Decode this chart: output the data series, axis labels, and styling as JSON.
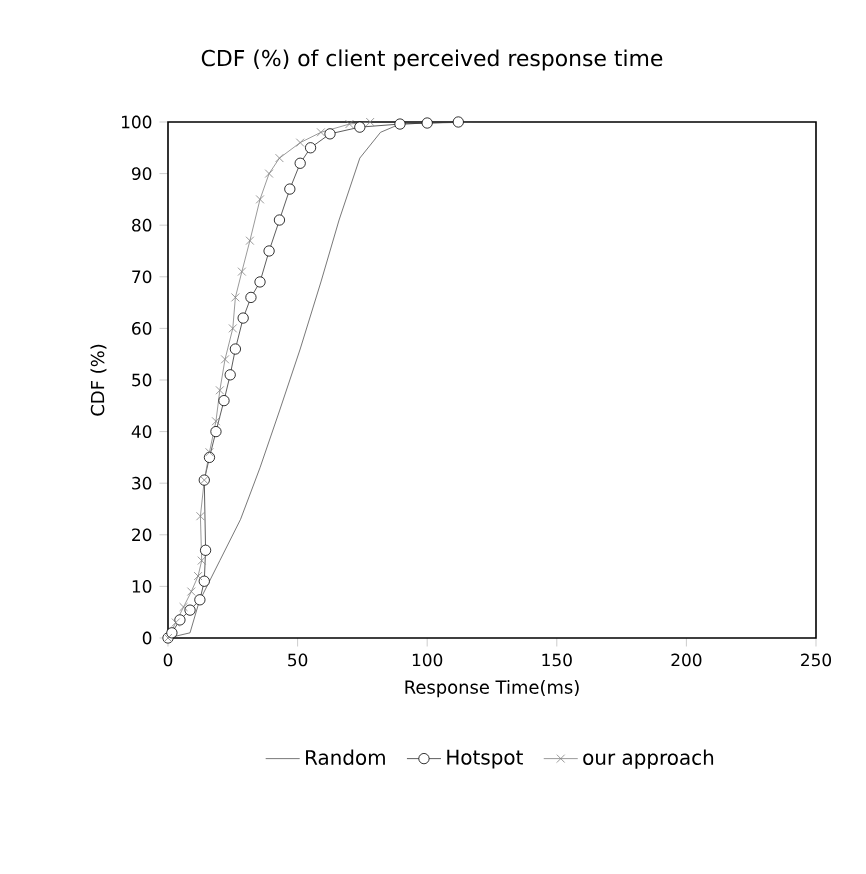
{
  "chart_data": {
    "type": "line",
    "title": "CDF (%) of client perceived response time",
    "xlabel": "Response Time(ms)",
    "ylabel": "CDF (%)",
    "xlim": [
      0,
      250
    ],
    "xticks": [
      0,
      50,
      100,
      150,
      200,
      250
    ],
    "ylim": [
      0,
      100
    ],
    "yticks": [
      0,
      10,
      20,
      30,
      40,
      50,
      60,
      70,
      80,
      90,
      100
    ],
    "legend": "bottom",
    "grid": false,
    "series": [
      {
        "name": "Random",
        "color": "#555555",
        "marker": "none",
        "x": [
          0,
          8.5,
          12,
          20,
          28,
          35.5,
          43,
          51,
          59,
          66,
          74,
          82,
          89.5,
          101,
          120,
          136
        ],
        "values": [
          0,
          1,
          7,
          15,
          23,
          33,
          44,
          56,
          69,
          81,
          93,
          98,
          99.6,
          99.8,
          100,
          100
        ]
      },
      {
        "name": "Hotspot",
        "color": "#333333",
        "marker": "circle",
        "x": [
          0,
          1.5,
          4.6,
          8.5,
          12.3,
          14,
          14.5,
          14,
          16,
          18.5,
          21.6,
          24,
          26,
          29,
          32,
          35.5,
          39,
          43,
          47,
          51,
          55,
          62.5,
          74,
          89.5,
          100,
          112
        ],
        "values": [
          0,
          1,
          3.5,
          5.4,
          7.4,
          11,
          17,
          30.6,
          35,
          40,
          46,
          51,
          56,
          62,
          66,
          69,
          75,
          81,
          87,
          92,
          95,
          97.7,
          99,
          99.6,
          99.8,
          100
        ]
      },
      {
        "name": "our approach",
        "color": "#808080",
        "marker": "cross",
        "x": [
          0,
          3,
          6,
          9,
          11.6,
          13,
          12.5,
          14,
          16,
          18.5,
          20,
          22,
          25,
          26,
          28.5,
          31.6,
          35.5,
          39,
          43,
          51,
          59,
          70,
          78
        ],
        "values": [
          0,
          3,
          6,
          9,
          12,
          15,
          23.6,
          30.6,
          36,
          42,
          48,
          54,
          60,
          66,
          71,
          77,
          85,
          90,
          93,
          96,
          98,
          99.6,
          100
        ]
      }
    ]
  }
}
